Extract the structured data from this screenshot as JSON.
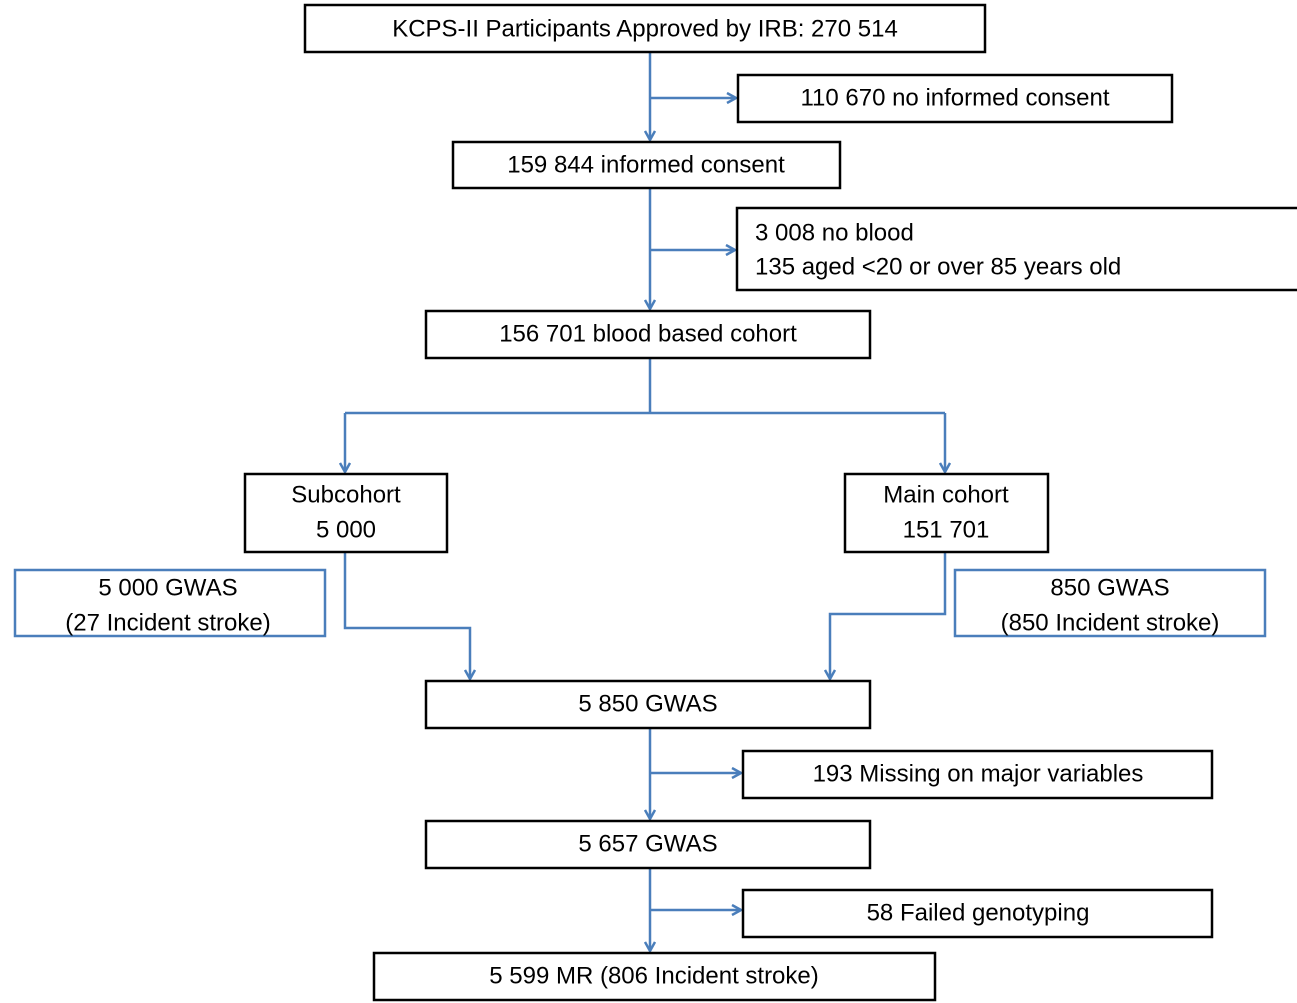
{
  "nodes": [
    {
      "lines": [
        "KCPS-II Participants Approved by IRB: 270 514"
      ]
    },
    {
      "lines": [
        "110 670 no informed consent"
      ]
    },
    {
      "lines": [
        "159 844 informed consent"
      ]
    },
    {
      "lines": [
        "3 008 no blood",
        "135 aged <20 or over 85 years old"
      ]
    },
    {
      "lines": [
        "156 701 blood based cohort"
      ]
    },
    {
      "lines": [
        "Subcohort",
        "5 000"
      ]
    },
    {
      "lines": [
        "Main cohort",
        "151 701"
      ]
    },
    {
      "lines": [
        "5 000 GWAS",
        "(27 Incident stroke)"
      ]
    },
    {
      "lines": [
        "850 GWAS",
        "(850 Incident stroke)"
      ]
    },
    {
      "lines": [
        "5 850 GWAS"
      ]
    },
    {
      "lines": [
        "193 Missing on major variables"
      ]
    },
    {
      "lines": [
        "5 657 GWAS"
      ]
    },
    {
      "lines": [
        "58 Failed genotyping"
      ]
    },
    {
      "lines": [
        "5 599 MR (806 Incident stroke)"
      ]
    }
  ]
}
